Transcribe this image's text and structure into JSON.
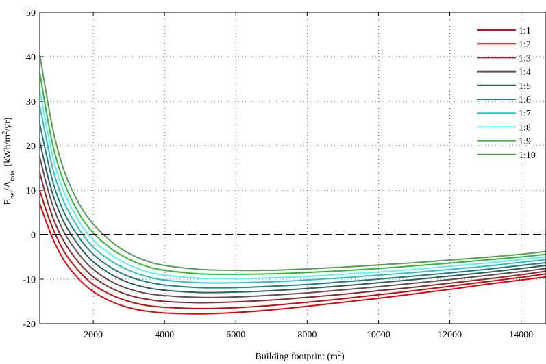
{
  "chart_data": {
    "type": "line",
    "title": "",
    "xlabel": "Building footprint (m",
    "xlabel_sup": "2",
    "xlabel_end": ")",
    "ylabel_parts": {
      "E": "E",
      "net": "net",
      "slash": "/A",
      "total": "total",
      "units_start": " (kWh/m",
      "units_sup": "2",
      "units_end": "/yr)"
    },
    "xlim": [
      500,
      14700
    ],
    "ylim": [
      -20,
      50
    ],
    "xticks": [
      2000,
      4000,
      6000,
      8000,
      10000,
      12000,
      14000
    ],
    "yticks": [
      -20,
      -10,
      0,
      10,
      20,
      30,
      40,
      50
    ],
    "grid": true,
    "legend_position": "top-right",
    "reference_line": {
      "y": 0,
      "style": "dashed",
      "color": "#000000"
    },
    "x": [
      500,
      700,
      900,
      1200,
      1600,
      2000,
      2500,
      3000,
      3500,
      4000,
      5000,
      6000,
      7000,
      8000,
      9000,
      10000,
      11000,
      12000,
      13000,
      14000,
      14700
    ],
    "series": [
      {
        "name": "1:1",
        "color": "#e8000b",
        "values": [
          7.0,
          2.5,
          -1.5,
          -6.0,
          -10.0,
          -12.8,
          -15.0,
          -16.4,
          -17.2,
          -17.6,
          -17.8,
          -17.5,
          -16.9,
          -16.1,
          -15.2,
          -14.3,
          -13.3,
          -12.3,
          -11.2,
          -10.2,
          -9.5
        ]
      },
      {
        "name": "1:2",
        "color": "#c40a0a",
        "values": [
          10.0,
          5.0,
          0.8,
          -4.0,
          -8.2,
          -11.2,
          -13.5,
          -15.0,
          -15.9,
          -16.3,
          -16.6,
          -16.4,
          -15.9,
          -15.2,
          -14.4,
          -13.5,
          -12.6,
          -11.6,
          -10.6,
          -9.6,
          -8.8
        ]
      },
      {
        "name": "1:3",
        "color": "#8b2a2a",
        "values": [
          14.0,
          8.0,
          3.2,
          -1.8,
          -6.3,
          -9.5,
          -12.0,
          -13.6,
          -14.5,
          -15.0,
          -15.3,
          -15.1,
          -14.7,
          -14.1,
          -13.4,
          -12.6,
          -11.8,
          -10.9,
          -10.0,
          -9.0,
          -8.2
        ]
      },
      {
        "name": "1:4",
        "color": "#6a4a4a",
        "values": [
          17.5,
          11.0,
          5.8,
          0.3,
          -4.4,
          -7.8,
          -10.5,
          -12.2,
          -13.2,
          -13.7,
          -14.1,
          -14.0,
          -13.6,
          -13.1,
          -12.4,
          -11.7,
          -10.9,
          -10.1,
          -9.2,
          -8.3,
          -7.6
        ]
      },
      {
        "name": "1:5",
        "color": "#2e5e5a",
        "values": [
          21.0,
          14.0,
          8.3,
          2.5,
          -2.5,
          -6.1,
          -8.9,
          -10.8,
          -11.9,
          -12.5,
          -13.0,
          -12.9,
          -12.6,
          -12.1,
          -11.5,
          -10.8,
          -10.1,
          -9.3,
          -8.5,
          -7.6,
          -6.9
        ]
      },
      {
        "name": "1:6",
        "color": "#1d7e8a",
        "values": [
          25.0,
          17.5,
          11.0,
          4.7,
          -0.6,
          -4.4,
          -7.4,
          -9.4,
          -10.6,
          -11.3,
          -11.9,
          -11.9,
          -11.6,
          -11.2,
          -10.6,
          -10.0,
          -9.3,
          -8.6,
          -7.8,
          -6.9,
          -6.3
        ]
      },
      {
        "name": "1:7",
        "color": "#2ac1c8",
        "values": [
          29.0,
          21.0,
          13.8,
          7.0,
          1.3,
          -2.8,
          -5.9,
          -8.0,
          -9.4,
          -10.2,
          -10.8,
          -10.8,
          -10.6,
          -10.2,
          -9.7,
          -9.1,
          -8.5,
          -7.8,
          -7.1,
          -6.2,
          -5.6
        ]
      },
      {
        "name": "1:8",
        "color": "#5ef0f5",
        "values": [
          32.5,
          24.0,
          16.4,
          9.2,
          3.1,
          -1.2,
          -4.5,
          -6.8,
          -8.3,
          -9.1,
          -9.8,
          -9.9,
          -9.7,
          -9.4,
          -8.9,
          -8.4,
          -7.8,
          -7.1,
          -6.4,
          -5.6,
          -5.0
        ]
      },
      {
        "name": "1:9",
        "color": "#2cbb2c",
        "values": [
          36.5,
          27.0,
          19.0,
          11.4,
          4.8,
          0.4,
          -3.1,
          -5.5,
          -7.1,
          -8.0,
          -8.8,
          -8.9,
          -8.8,
          -8.5,
          -8.1,
          -7.6,
          -7.0,
          -6.4,
          -5.7,
          -5.0,
          -4.4
        ]
      },
      {
        "name": "1:10",
        "color": "#5a9a5a",
        "values": [
          40.5,
          31.0,
          22.5,
          14.0,
          7.0,
          2.4,
          -1.5,
          -4.2,
          -5.9,
          -6.9,
          -7.8,
          -8.0,
          -8.0,
          -7.7,
          -7.3,
          -6.8,
          -6.3,
          -5.7,
          -5.1,
          -4.4,
          -3.8
        ]
      }
    ]
  }
}
